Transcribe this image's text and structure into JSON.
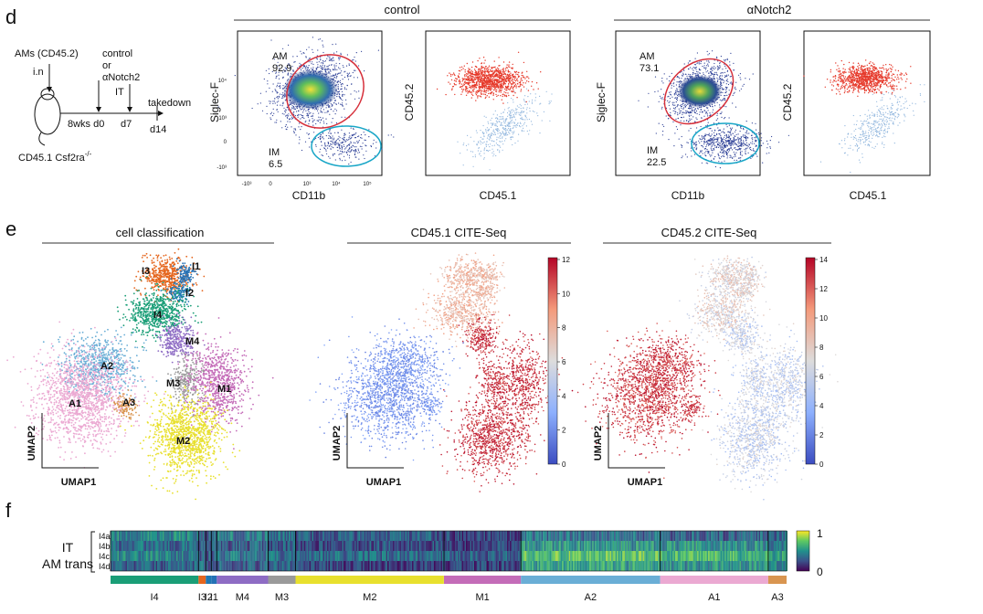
{
  "panel_d": {
    "letter": "d",
    "schematic": {
      "ams": "AMs (CD45.2)",
      "in": "i.n",
      "control": "control",
      "or": "or",
      "anotch2": "αNotch2",
      "it": "IT",
      "takedown": "takedown",
      "wks": "8wks d0",
      "d7": "d7",
      "d14": "d14",
      "mouse": "CD45.1 Csf2ra",
      "mouse_sup": "-/-"
    },
    "control_header": "control",
    "anotch_header": "αNotch2",
    "flow_control": {
      "y_label": "Siglec-F",
      "x_label": "CD11b",
      "am_label": "AM",
      "am_value": "92.9",
      "im_label": "IM",
      "im_value": "6.5",
      "y_ticks": [
        "10⁴",
        "10³",
        "0",
        "-10³"
      ],
      "x_ticks": [
        "-10³",
        "0",
        "10³",
        "10⁴",
        "10⁵"
      ]
    },
    "cd45_control": {
      "y_label": "CD45.2",
      "x_label": "CD45.1"
    },
    "flow_anotch": {
      "y_label": "Siglec-F",
      "x_label": "CD11b",
      "am_label": "AM",
      "am_value": "73.1",
      "im_label": "IM",
      "im_value": "22.5"
    },
    "cd45_anotch": {
      "y_label": "CD45.2",
      "x_label": "CD45.1"
    }
  },
  "panel_e": {
    "letter": "e",
    "titles": [
      "cell classification",
      "CD45.1 CITE-Seq",
      "CD45.2 CITE-Seq"
    ],
    "umap_x": "UMAP1",
    "umap_y": "UMAP2",
    "clusters": [
      "I3",
      "I1",
      "I2",
      "I4",
      "M4",
      "A2",
      "M3",
      "M1",
      "A1",
      "A3",
      "M2"
    ],
    "colorbar1_ticks": [
      "12",
      "10",
      "8",
      "6",
      "4",
      "2",
      "0"
    ],
    "colorbar2_ticks": [
      "14",
      "12",
      "10",
      "8",
      "6",
      "4",
      "2",
      "0"
    ]
  },
  "panel_f": {
    "letter": "f",
    "row_group_line1": "IT",
    "row_group_line2": "AM trans",
    "rows": [
      "I4a",
      "I4b",
      "I4c",
      "I4d"
    ],
    "colorbar_max": "1",
    "colorbar_min": "0",
    "segments": [
      "I4",
      "I3",
      "I2",
      "I1",
      "M4",
      "M3",
      "M2",
      "M1",
      "A2",
      "A1",
      "A3"
    ]
  },
  "colors": {
    "I4": "#1a9e77",
    "I3": "#e5661e",
    "I2": "#1f78b4",
    "I1": "#2471b5",
    "M4": "#8e6cc4",
    "M3": "#9a9a9a",
    "M2": "#e8e02e",
    "M1": "#c46cb8",
    "A2": "#6aaed6",
    "A1": "#eba9d2",
    "A3": "#d99550",
    "gate_am": "#d62f3a",
    "gate_im": "#19a6c7"
  }
}
